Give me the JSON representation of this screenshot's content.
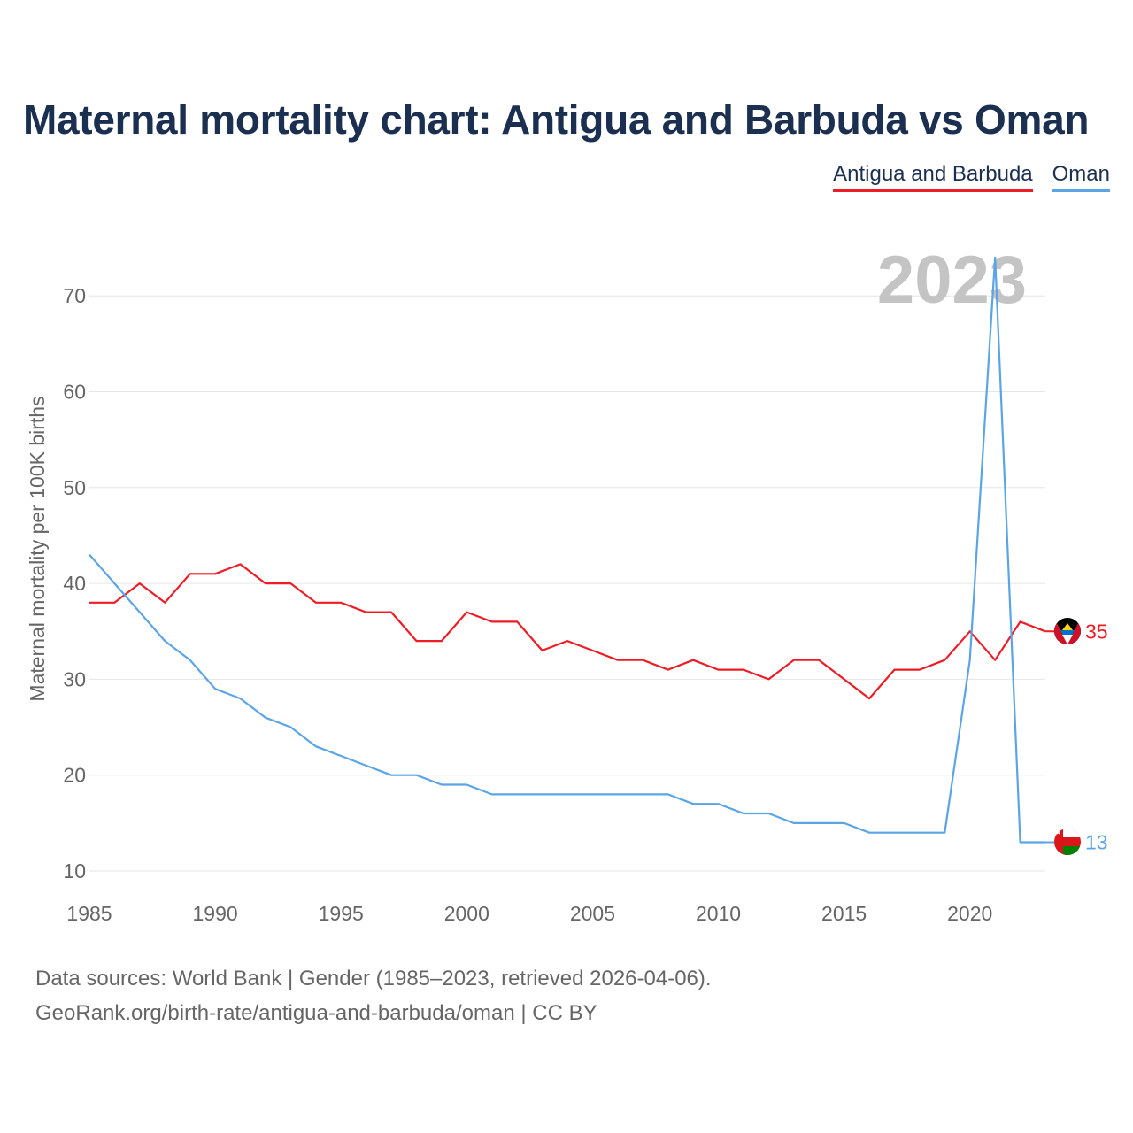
{
  "chart_data": {
    "type": "line",
    "title": "Maternal mortality chart: Antigua and Barbuda vs Oman",
    "ylabel": "Maternal mortality per 100K births",
    "xlabel": "",
    "year_watermark": "2023",
    "x": [
      1985,
      1986,
      1987,
      1988,
      1989,
      1990,
      1991,
      1992,
      1993,
      1994,
      1995,
      1996,
      1997,
      1998,
      1999,
      2000,
      2001,
      2002,
      2003,
      2004,
      2005,
      2006,
      2007,
      2008,
      2009,
      2010,
      2011,
      2012,
      2013,
      2014,
      2015,
      2016,
      2017,
      2018,
      2019,
      2020,
      2021,
      2022,
      2023
    ],
    "xlim": [
      1985,
      2023
    ],
    "ylim": [
      10,
      75
    ],
    "x_ticks": [
      "1985",
      "1990",
      "1995",
      "2000",
      "2005",
      "2010",
      "2015",
      "2020"
    ],
    "y_ticks": [
      "10",
      "20",
      "30",
      "40",
      "50",
      "60",
      "70"
    ],
    "series": [
      {
        "name": "Antigua and Barbuda",
        "color": "#ee1c25",
        "end_label": "35",
        "values": [
          38,
          38,
          40,
          38,
          41,
          41,
          42,
          40,
          40,
          38,
          38,
          37,
          37,
          34,
          34,
          37,
          36,
          36,
          33,
          34,
          33,
          32,
          32,
          31,
          32,
          31,
          31,
          30,
          32,
          32,
          30,
          28,
          31,
          31,
          32,
          35,
          32,
          36,
          35
        ]
      },
      {
        "name": "Oman",
        "color": "#5ba4e5",
        "end_label": "13",
        "values": [
          43,
          40,
          37,
          34,
          32,
          29,
          28,
          26,
          25,
          23,
          22,
          21,
          20,
          20,
          19,
          19,
          18,
          18,
          18,
          18,
          18,
          18,
          18,
          18,
          17,
          17,
          16,
          16,
          15,
          15,
          15,
          14,
          14,
          14,
          14,
          32,
          74,
          13,
          13
        ]
      }
    ]
  },
  "legend": {
    "items": [
      "Antigua and Barbuda",
      "Oman"
    ]
  },
  "footer": {
    "line1": "Data sources: World Bank | Gender (1985–2023, retrieved 2026-04-06).",
    "line2": "GeoRank.org/birth-rate/antigua-and-barbuda/oman | CC BY"
  },
  "flags": {
    "antigua": "antigua-and-barbuda-flag-icon",
    "oman": "oman-flag-icon"
  }
}
